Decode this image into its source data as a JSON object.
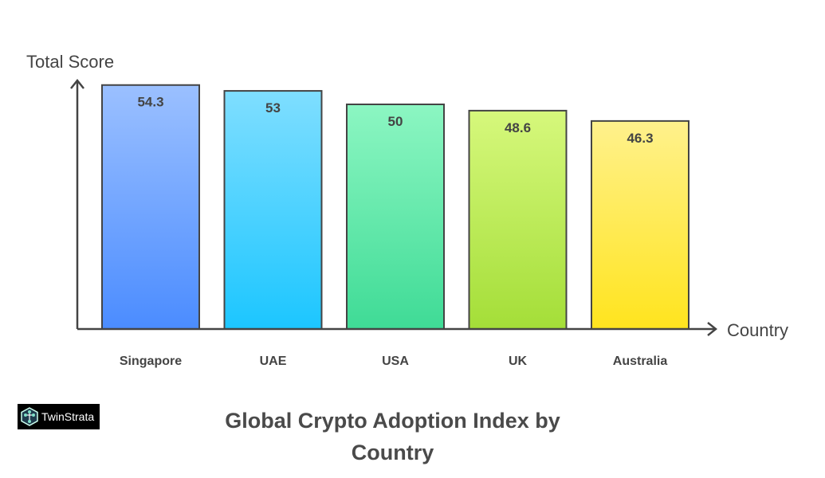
{
  "chart_data": {
    "type": "bar",
    "title": "Global Crypto Adoption Index by Country",
    "xlabel": "Country",
    "ylabel": "Total Score",
    "categories": [
      "Singapore",
      "UAE",
      "USA",
      "UK",
      "Australia"
    ],
    "values": [
      54.3,
      53,
      50,
      48.6,
      46.3
    ],
    "data_labels": [
      "54.3",
      "53",
      "50",
      "48.6",
      "46.3"
    ],
    "ylim": [
      0,
      60
    ],
    "grid": false,
    "colors": [
      [
        "#9bc0ff",
        "#4b8cff"
      ],
      [
        "#7fdeff",
        "#1cc6ff"
      ],
      [
        "#8cf6c2",
        "#3fdb96"
      ],
      [
        "#d6f87c",
        "#a4de38"
      ],
      [
        "#fff18c",
        "#ffe41e"
      ]
    ]
  },
  "logo": {
    "text": "TwinStrata"
  }
}
